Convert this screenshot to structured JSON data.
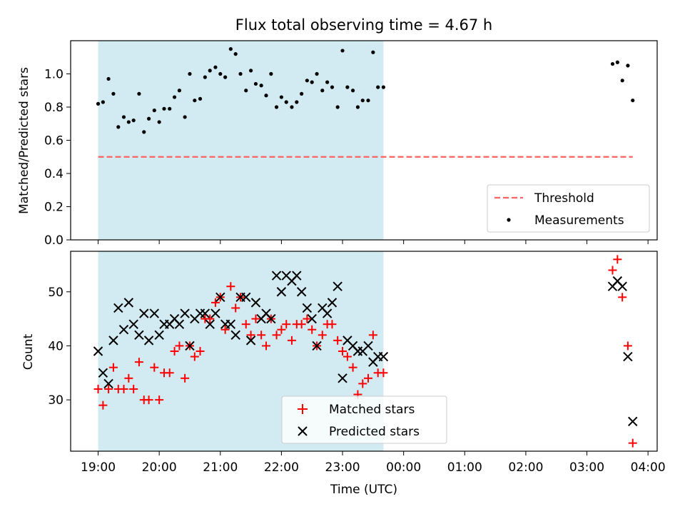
{
  "figure_title": "Flux total observing time = 4.67 h",
  "x_axis_label": "Time (UTC)",
  "x_tick_labels": [
    "19:00",
    "20:00",
    "21:00",
    "22:00",
    "23:00",
    "00:00",
    "01:00",
    "02:00",
    "03:00",
    "04:00"
  ],
  "colors": {
    "shaded_interval": "#add8e6",
    "threshold_line": "#ff6060",
    "measurements": "#000000",
    "matched": "#ff0000",
    "predicted": "#000000"
  },
  "chart_data": [
    {
      "type": "scatter",
      "title": "Flux total observing time = 4.67 h",
      "xlabel": "",
      "ylabel": "Matched/Predicted stars",
      "x_axis": "time (hours after 19:00 UTC)",
      "xlim": [
        -0.45,
        9.15
      ],
      "ylim": [
        0,
        1.2
      ],
      "y_ticks": [
        "0.0",
        "0.2",
        "0.4",
        "0.6",
        "0.8",
        "1.0"
      ],
      "shaded_interval": [
        0,
        4.67
      ],
      "legend_placement": "lower right",
      "threshold": {
        "name": "Threshold",
        "value": 0.5,
        "x_range": [
          0,
          8.75
        ],
        "style": "dashed"
      },
      "series": [
        {
          "name": "Measurements",
          "marker": "dot",
          "points": [
            [
              0.0,
              0.82
            ],
            [
              0.08,
              0.83
            ],
            [
              0.17,
              0.97
            ],
            [
              0.25,
              0.88
            ],
            [
              0.33,
              0.68
            ],
            [
              0.42,
              0.74
            ],
            [
              0.5,
              0.71
            ],
            [
              0.58,
              0.72
            ],
            [
              0.67,
              0.88
            ],
            [
              0.75,
              0.65
            ],
            [
              0.83,
              0.73
            ],
            [
              0.92,
              0.78
            ],
            [
              1.0,
              0.71
            ],
            [
              1.08,
              0.79
            ],
            [
              1.17,
              0.79
            ],
            [
              1.25,
              0.86
            ],
            [
              1.33,
              0.9
            ],
            [
              1.42,
              0.74
            ],
            [
              1.5,
              1.0
            ],
            [
              1.58,
              0.84
            ],
            [
              1.67,
              0.85
            ],
            [
              1.75,
              0.98
            ],
            [
              1.83,
              1.02
            ],
            [
              1.92,
              1.04
            ],
            [
              2.0,
              1.0
            ],
            [
              2.08,
              0.98
            ],
            [
              2.17,
              1.15
            ],
            [
              2.25,
              1.12
            ],
            [
              2.33,
              1.0
            ],
            [
              2.42,
              0.9
            ],
            [
              2.5,
              1.02
            ],
            [
              2.58,
              0.94
            ],
            [
              2.67,
              0.93
            ],
            [
              2.75,
              0.87
            ],
            [
              2.83,
              1.0
            ],
            [
              2.92,
              0.8
            ],
            [
              3.0,
              0.86
            ],
            [
              3.08,
              0.83
            ],
            [
              3.17,
              0.8
            ],
            [
              3.25,
              0.83
            ],
            [
              3.33,
              0.88
            ],
            [
              3.42,
              0.96
            ],
            [
              3.5,
              0.95
            ],
            [
              3.58,
              1.0
            ],
            [
              3.67,
              0.9
            ],
            [
              3.75,
              0.95
            ],
            [
              3.83,
              0.92
            ],
            [
              3.92,
              0.8
            ],
            [
              4.0,
              1.14
            ],
            [
              4.08,
              0.92
            ],
            [
              4.17,
              0.9
            ],
            [
              4.25,
              0.8
            ],
            [
              4.33,
              0.84
            ],
            [
              4.42,
              0.84
            ],
            [
              4.5,
              1.13
            ],
            [
              4.58,
              0.92
            ],
            [
              4.67,
              0.92
            ],
            [
              8.42,
              1.06
            ],
            [
              8.5,
              1.07
            ],
            [
              8.58,
              0.96
            ],
            [
              8.67,
              1.05
            ],
            [
              8.75,
              0.84
            ]
          ]
        }
      ]
    },
    {
      "type": "scatter",
      "title": "",
      "xlabel": "Time (UTC)",
      "ylabel": "Count",
      "x_axis": "time (hours after 19:00 UTC)",
      "xlim": [
        -0.45,
        9.15
      ],
      "ylim": [
        20.5,
        57.5
      ],
      "y_ticks": [
        "30",
        "40",
        "50"
      ],
      "shaded_interval": [
        0,
        4.67
      ],
      "legend_placement": "lower center",
      "series": [
        {
          "name": "Matched stars",
          "marker": "plus",
          "points": [
            [
              0.0,
              32
            ],
            [
              0.08,
              29
            ],
            [
              0.17,
              32
            ],
            [
              0.25,
              36
            ],
            [
              0.33,
              32
            ],
            [
              0.42,
              32
            ],
            [
              0.5,
              34
            ],
            [
              0.58,
              32
            ],
            [
              0.67,
              37
            ],
            [
              0.75,
              30
            ],
            [
              0.83,
              30
            ],
            [
              0.92,
              36
            ],
            [
              1.0,
              30
            ],
            [
              1.08,
              35
            ],
            [
              1.17,
              35
            ],
            [
              1.25,
              39
            ],
            [
              1.33,
              40
            ],
            [
              1.42,
              34
            ],
            [
              1.5,
              40
            ],
            [
              1.58,
              38
            ],
            [
              1.67,
              39
            ],
            [
              1.75,
              45
            ],
            [
              1.83,
              45
            ],
            [
              1.92,
              48
            ],
            [
              2.0,
              49
            ],
            [
              2.08,
              43
            ],
            [
              2.17,
              51
            ],
            [
              2.25,
              47
            ],
            [
              2.33,
              49
            ],
            [
              2.42,
              44
            ],
            [
              2.5,
              42
            ],
            [
              2.58,
              45
            ],
            [
              2.67,
              42
            ],
            [
              2.75,
              40
            ],
            [
              2.83,
              45
            ],
            [
              2.92,
              42
            ],
            [
              3.0,
              43
            ],
            [
              3.08,
              44
            ],
            [
              3.17,
              41
            ],
            [
              3.25,
              44
            ],
            [
              3.33,
              44
            ],
            [
              3.42,
              45
            ],
            [
              3.5,
              43
            ],
            [
              3.58,
              40
            ],
            [
              3.67,
              42
            ],
            [
              3.75,
              44
            ],
            [
              3.83,
              44
            ],
            [
              3.92,
              41
            ],
            [
              4.0,
              39
            ],
            [
              4.08,
              38
            ],
            [
              4.17,
              36
            ],
            [
              4.25,
              31
            ],
            [
              4.33,
              33
            ],
            [
              4.42,
              34
            ],
            [
              4.5,
              42
            ],
            [
              4.58,
              35
            ],
            [
              4.67,
              35
            ],
            [
              8.42,
              54
            ],
            [
              8.5,
              56
            ],
            [
              8.58,
              49
            ],
            [
              8.67,
              40
            ],
            [
              8.75,
              22
            ]
          ]
        },
        {
          "name": "Predicted stars",
          "marker": "x",
          "points": [
            [
              0.0,
              39
            ],
            [
              0.08,
              35
            ],
            [
              0.17,
              33
            ],
            [
              0.25,
              41
            ],
            [
              0.33,
              47
            ],
            [
              0.42,
              43
            ],
            [
              0.5,
              48
            ],
            [
              0.58,
              44
            ],
            [
              0.67,
              42
            ],
            [
              0.75,
              46
            ],
            [
              0.83,
              41
            ],
            [
              0.92,
              46
            ],
            [
              1.0,
              42
            ],
            [
              1.08,
              44
            ],
            [
              1.17,
              44
            ],
            [
              1.25,
              45
            ],
            [
              1.33,
              44
            ],
            [
              1.42,
              46
            ],
            [
              1.5,
              40
            ],
            [
              1.58,
              45
            ],
            [
              1.67,
              46
            ],
            [
              1.75,
              46
            ],
            [
              1.83,
              44
            ],
            [
              1.92,
              46
            ],
            [
              2.0,
              49
            ],
            [
              2.08,
              44
            ],
            [
              2.17,
              44
            ],
            [
              2.25,
              42
            ],
            [
              2.33,
              49
            ],
            [
              2.42,
              49
            ],
            [
              2.5,
              41
            ],
            [
              2.58,
              48
            ],
            [
              2.67,
              45
            ],
            [
              2.75,
              46
            ],
            [
              2.83,
              45
            ],
            [
              2.92,
              53
            ],
            [
              3.0,
              50
            ],
            [
              3.08,
              53
            ],
            [
              3.17,
              52
            ],
            [
              3.25,
              53
            ],
            [
              3.33,
              50
            ],
            [
              3.42,
              47
            ],
            [
              3.5,
              45
            ],
            [
              3.58,
              40
            ],
            [
              3.67,
              47
            ],
            [
              3.75,
              46
            ],
            [
              3.83,
              48
            ],
            [
              3.92,
              51
            ],
            [
              4.0,
              34
            ],
            [
              4.08,
              41
            ],
            [
              4.17,
              40
            ],
            [
              4.25,
              39
            ],
            [
              4.33,
              39
            ],
            [
              4.42,
              40
            ],
            [
              4.5,
              37
            ],
            [
              4.58,
              38
            ],
            [
              4.67,
              38
            ],
            [
              8.42,
              51
            ],
            [
              8.5,
              52
            ],
            [
              8.58,
              51
            ],
            [
              8.67,
              38
            ],
            [
              8.75,
              26
            ]
          ]
        }
      ]
    }
  ]
}
